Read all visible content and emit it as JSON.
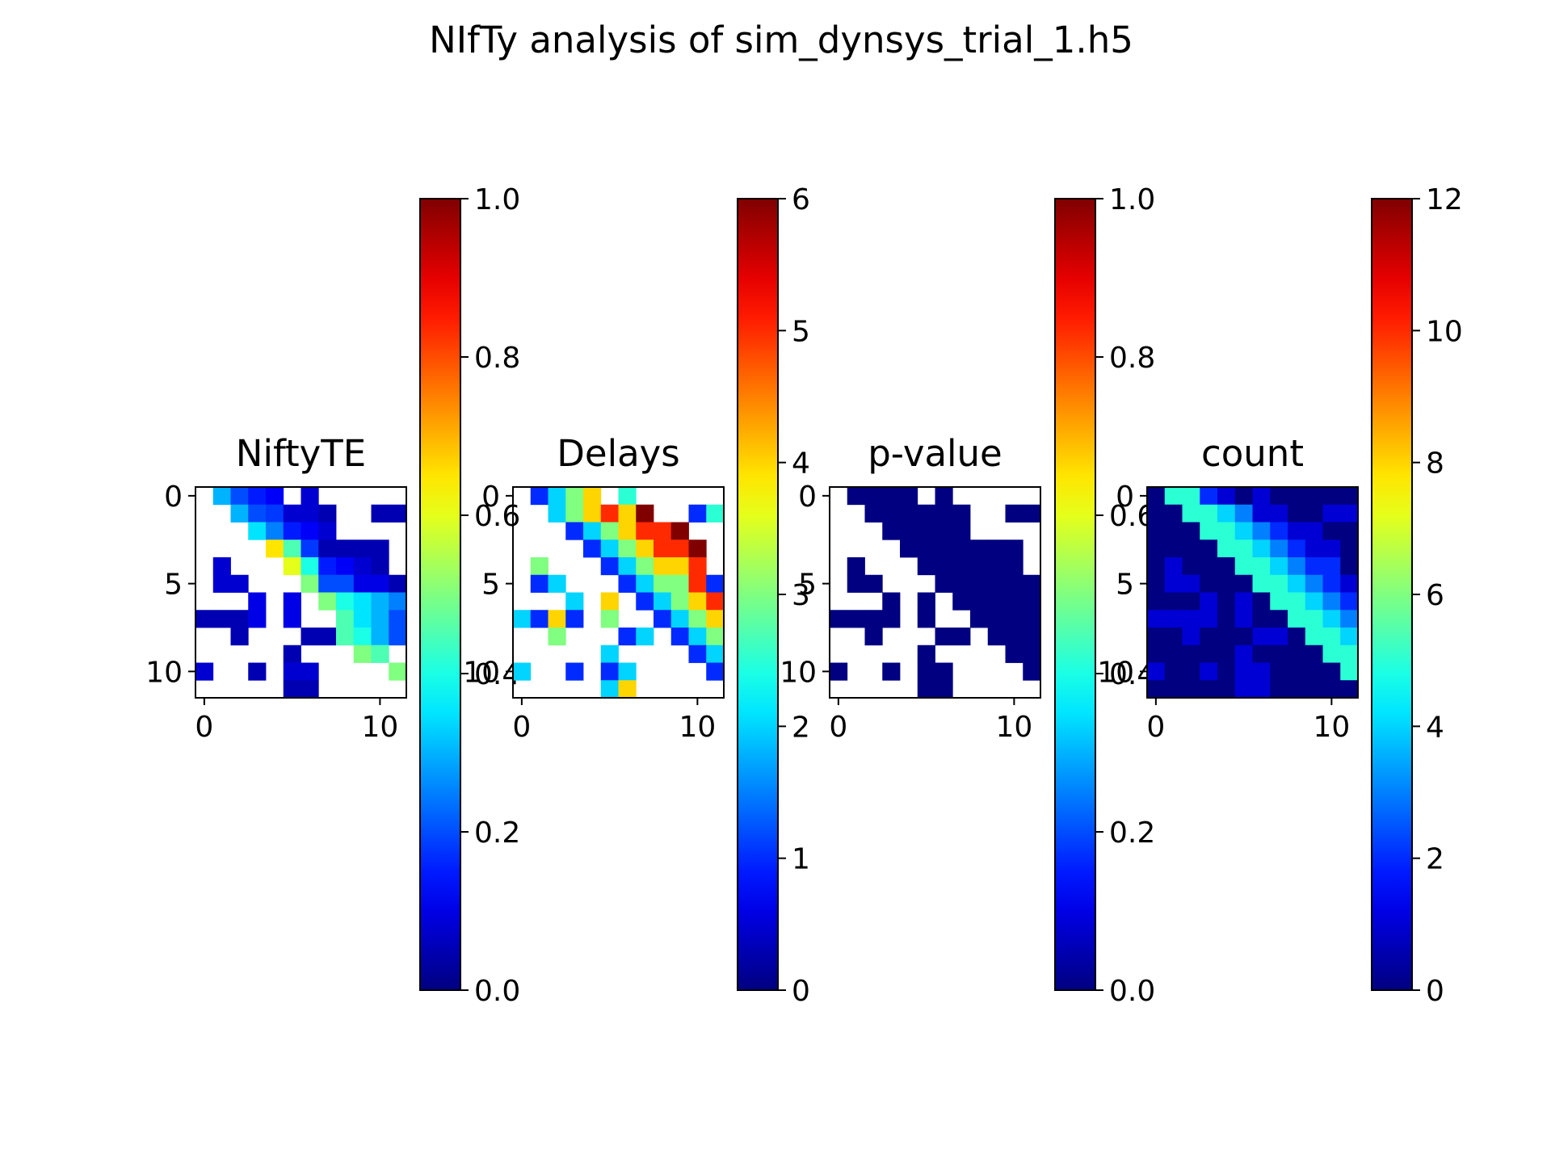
{
  "figure": {
    "title": "NIfTy analysis of sim_dynsys_trial_1.h5"
  },
  "colormap": "jet",
  "chart_data": [
    {
      "type": "heatmap",
      "title": "NiftyTE",
      "rows": 12,
      "cols": 12,
      "xticks": [
        "0",
        "10"
      ],
      "yticks": [
        "0",
        "5",
        "10"
      ],
      "vmin": 0,
      "vmax": 1,
      "colorbar_ticks": [
        "0.0",
        "0.2",
        "0.4",
        "0.6",
        "0.8",
        "1.0"
      ],
      "colorbar_values": [
        0,
        0.2,
        0.4,
        0.6,
        0.8,
        1.0
      ],
      "matrix": [
        [
          null,
          0.3,
          0.2,
          0.15,
          0.12,
          null,
          0.08,
          null,
          null,
          null,
          null,
          null
        ],
        [
          null,
          null,
          0.3,
          0.2,
          0.18,
          0.08,
          0.08,
          0.05,
          null,
          null,
          0.05,
          0.05
        ],
        [
          null,
          null,
          null,
          0.35,
          0.25,
          0.15,
          0.12,
          0.08,
          null,
          null,
          null,
          null
        ],
        [
          null,
          null,
          null,
          null,
          0.65,
          0.45,
          0.18,
          0.05,
          0.05,
          0.05,
          0.05,
          null
        ],
        [
          null,
          0.08,
          null,
          null,
          null,
          0.6,
          0.4,
          0.15,
          0.12,
          0.08,
          0.05,
          null
        ],
        [
          null,
          0.08,
          0.08,
          null,
          null,
          null,
          0.5,
          0.2,
          0.2,
          0.1,
          0.1,
          0.05
        ],
        [
          null,
          null,
          null,
          0.1,
          null,
          0.1,
          null,
          0.5,
          0.4,
          0.35,
          0.3,
          0.25
        ],
        [
          0.05,
          0.05,
          0.05,
          0.1,
          null,
          0.1,
          null,
          null,
          0.45,
          0.35,
          0.3,
          0.2
        ],
        [
          null,
          null,
          0.05,
          null,
          null,
          null,
          0.05,
          0.05,
          0.45,
          0.4,
          0.3,
          0.2
        ],
        [
          null,
          null,
          null,
          null,
          null,
          0.05,
          null,
          null,
          null,
          0.5,
          0.45,
          null
        ],
        [
          0.08,
          null,
          null,
          0.05,
          null,
          0.08,
          0.08,
          null,
          null,
          null,
          null,
          0.5
        ],
        [
          null,
          null,
          null,
          null,
          null,
          0.05,
          0.05,
          null,
          null,
          null,
          null,
          null
        ]
      ]
    },
    {
      "type": "heatmap",
      "title": "Delays",
      "rows": 12,
      "cols": 12,
      "xticks": [
        "0",
        "10"
      ],
      "yticks": [
        "0",
        "5",
        "10"
      ],
      "vmin": 0,
      "vmax": 6,
      "colorbar_ticks": [
        "0",
        "1",
        "2",
        "3",
        "4",
        "5",
        "6"
      ],
      "colorbar_values": [
        0,
        1,
        2,
        3,
        4,
        5,
        6
      ],
      "matrix": [
        [
          null,
          1,
          2,
          3,
          4,
          null,
          2.5,
          null,
          null,
          null,
          null,
          null
        ],
        [
          null,
          null,
          2,
          3,
          4,
          5,
          4,
          6,
          null,
          null,
          1,
          2.5
        ],
        [
          null,
          null,
          null,
          1,
          2,
          3,
          4,
          5,
          5,
          6,
          null,
          null
        ],
        [
          null,
          null,
          null,
          null,
          1,
          2,
          3,
          4,
          5,
          5,
          6,
          null
        ],
        [
          null,
          3,
          null,
          null,
          null,
          1,
          2,
          3,
          4,
          4,
          5,
          null
        ],
        [
          null,
          1,
          2,
          null,
          null,
          null,
          1,
          2,
          3,
          3,
          5,
          1
        ],
        [
          null,
          null,
          null,
          2,
          null,
          4,
          null,
          1,
          2,
          3,
          4,
          5
        ],
        [
          2,
          1,
          4,
          1,
          null,
          3,
          null,
          null,
          1,
          2,
          3,
          4
        ],
        [
          null,
          null,
          3,
          null,
          null,
          null,
          1,
          2,
          null,
          1,
          2,
          3
        ],
        [
          null,
          null,
          null,
          null,
          null,
          2,
          null,
          null,
          null,
          null,
          1,
          2
        ],
        [
          2,
          null,
          null,
          1,
          null,
          1,
          2,
          null,
          null,
          null,
          null,
          1
        ],
        [
          null,
          null,
          null,
          null,
          null,
          2,
          4,
          null,
          null,
          null,
          null,
          null
        ]
      ]
    },
    {
      "type": "heatmap",
      "title": "p-value",
      "rows": 12,
      "cols": 12,
      "xticks": [
        "0",
        "10"
      ],
      "yticks": [
        "0",
        "5",
        "10"
      ],
      "vmin": 0,
      "vmax": 1,
      "colorbar_ticks": [
        "0.0",
        "0.2",
        "0.4",
        "0.6",
        "0.8",
        "1.0"
      ],
      "colorbar_values": [
        0,
        0.2,
        0.4,
        0.6,
        0.8,
        1.0
      ],
      "matrix": [
        [
          null,
          0,
          0,
          0,
          0,
          null,
          0,
          null,
          null,
          null,
          null,
          null
        ],
        [
          null,
          null,
          0,
          0,
          0,
          0,
          0,
          0,
          null,
          null,
          0,
          0
        ],
        [
          null,
          null,
          null,
          0,
          0,
          0,
          0,
          0,
          null,
          null,
          null,
          null
        ],
        [
          null,
          null,
          null,
          null,
          0,
          0,
          0,
          0,
          0,
          0,
          0,
          null
        ],
        [
          null,
          0,
          null,
          null,
          null,
          0,
          0,
          0,
          0,
          0,
          0,
          null
        ],
        [
          null,
          0,
          0,
          null,
          null,
          null,
          0,
          0,
          0,
          0,
          0,
          0
        ],
        [
          null,
          null,
          null,
          0,
          null,
          0,
          null,
          0,
          0,
          0,
          0,
          0
        ],
        [
          0,
          0,
          0,
          0,
          null,
          0,
          null,
          null,
          0,
          0,
          0,
          0
        ],
        [
          null,
          null,
          0,
          null,
          null,
          null,
          0,
          0,
          null,
          0,
          0,
          0
        ],
        [
          null,
          null,
          null,
          null,
          null,
          0,
          null,
          null,
          null,
          null,
          0,
          0
        ],
        [
          0,
          null,
          null,
          0,
          null,
          0,
          0,
          null,
          null,
          null,
          null,
          0
        ],
        [
          null,
          null,
          null,
          null,
          null,
          0,
          0,
          null,
          null,
          null,
          null,
          null
        ]
      ]
    },
    {
      "type": "heatmap",
      "title": "count",
      "rows": 12,
      "cols": 12,
      "xticks": [
        "0",
        "10"
      ],
      "yticks": [
        "0",
        "5",
        "10"
      ],
      "vmin": 0,
      "vmax": 12,
      "colorbar_ticks": [
        "0",
        "2",
        "4",
        "6",
        "8",
        "10",
        "12"
      ],
      "colorbar_values": [
        0,
        2,
        4,
        6,
        8,
        10,
        12
      ],
      "matrix": [
        [
          0,
          5,
          5,
          2,
          1,
          0,
          1,
          0,
          0,
          0,
          0,
          0
        ],
        [
          0,
          0,
          5,
          5,
          4,
          3,
          1,
          1,
          0,
          0,
          1,
          1
        ],
        [
          0,
          0,
          0,
          5,
          5,
          4,
          3,
          2,
          1,
          1,
          0,
          0
        ],
        [
          0,
          0,
          0,
          0,
          5,
          5,
          4,
          3,
          2,
          1,
          1,
          0
        ],
        [
          0,
          1,
          0,
          0,
          0,
          5,
          5,
          4,
          3,
          2,
          2,
          0
        ],
        [
          0,
          1,
          1,
          0,
          0,
          0,
          5,
          5,
          4,
          3,
          2,
          1
        ],
        [
          0,
          0,
          0,
          1,
          0,
          1,
          0,
          5,
          5,
          4,
          3,
          2
        ],
        [
          1,
          1,
          1,
          1,
          0,
          1,
          0,
          0,
          5,
          5,
          4,
          3
        ],
        [
          0,
          0,
          1,
          0,
          0,
          0,
          1,
          1,
          0,
          5,
          5,
          4
        ],
        [
          0,
          0,
          0,
          0,
          0,
          1,
          0,
          0,
          0,
          0,
          5,
          5
        ],
        [
          1,
          0,
          0,
          1,
          0,
          1,
          1,
          0,
          0,
          0,
          0,
          5
        ],
        [
          0,
          0,
          0,
          0,
          0,
          1,
          1,
          0,
          0,
          0,
          0,
          0
        ]
      ]
    }
  ]
}
